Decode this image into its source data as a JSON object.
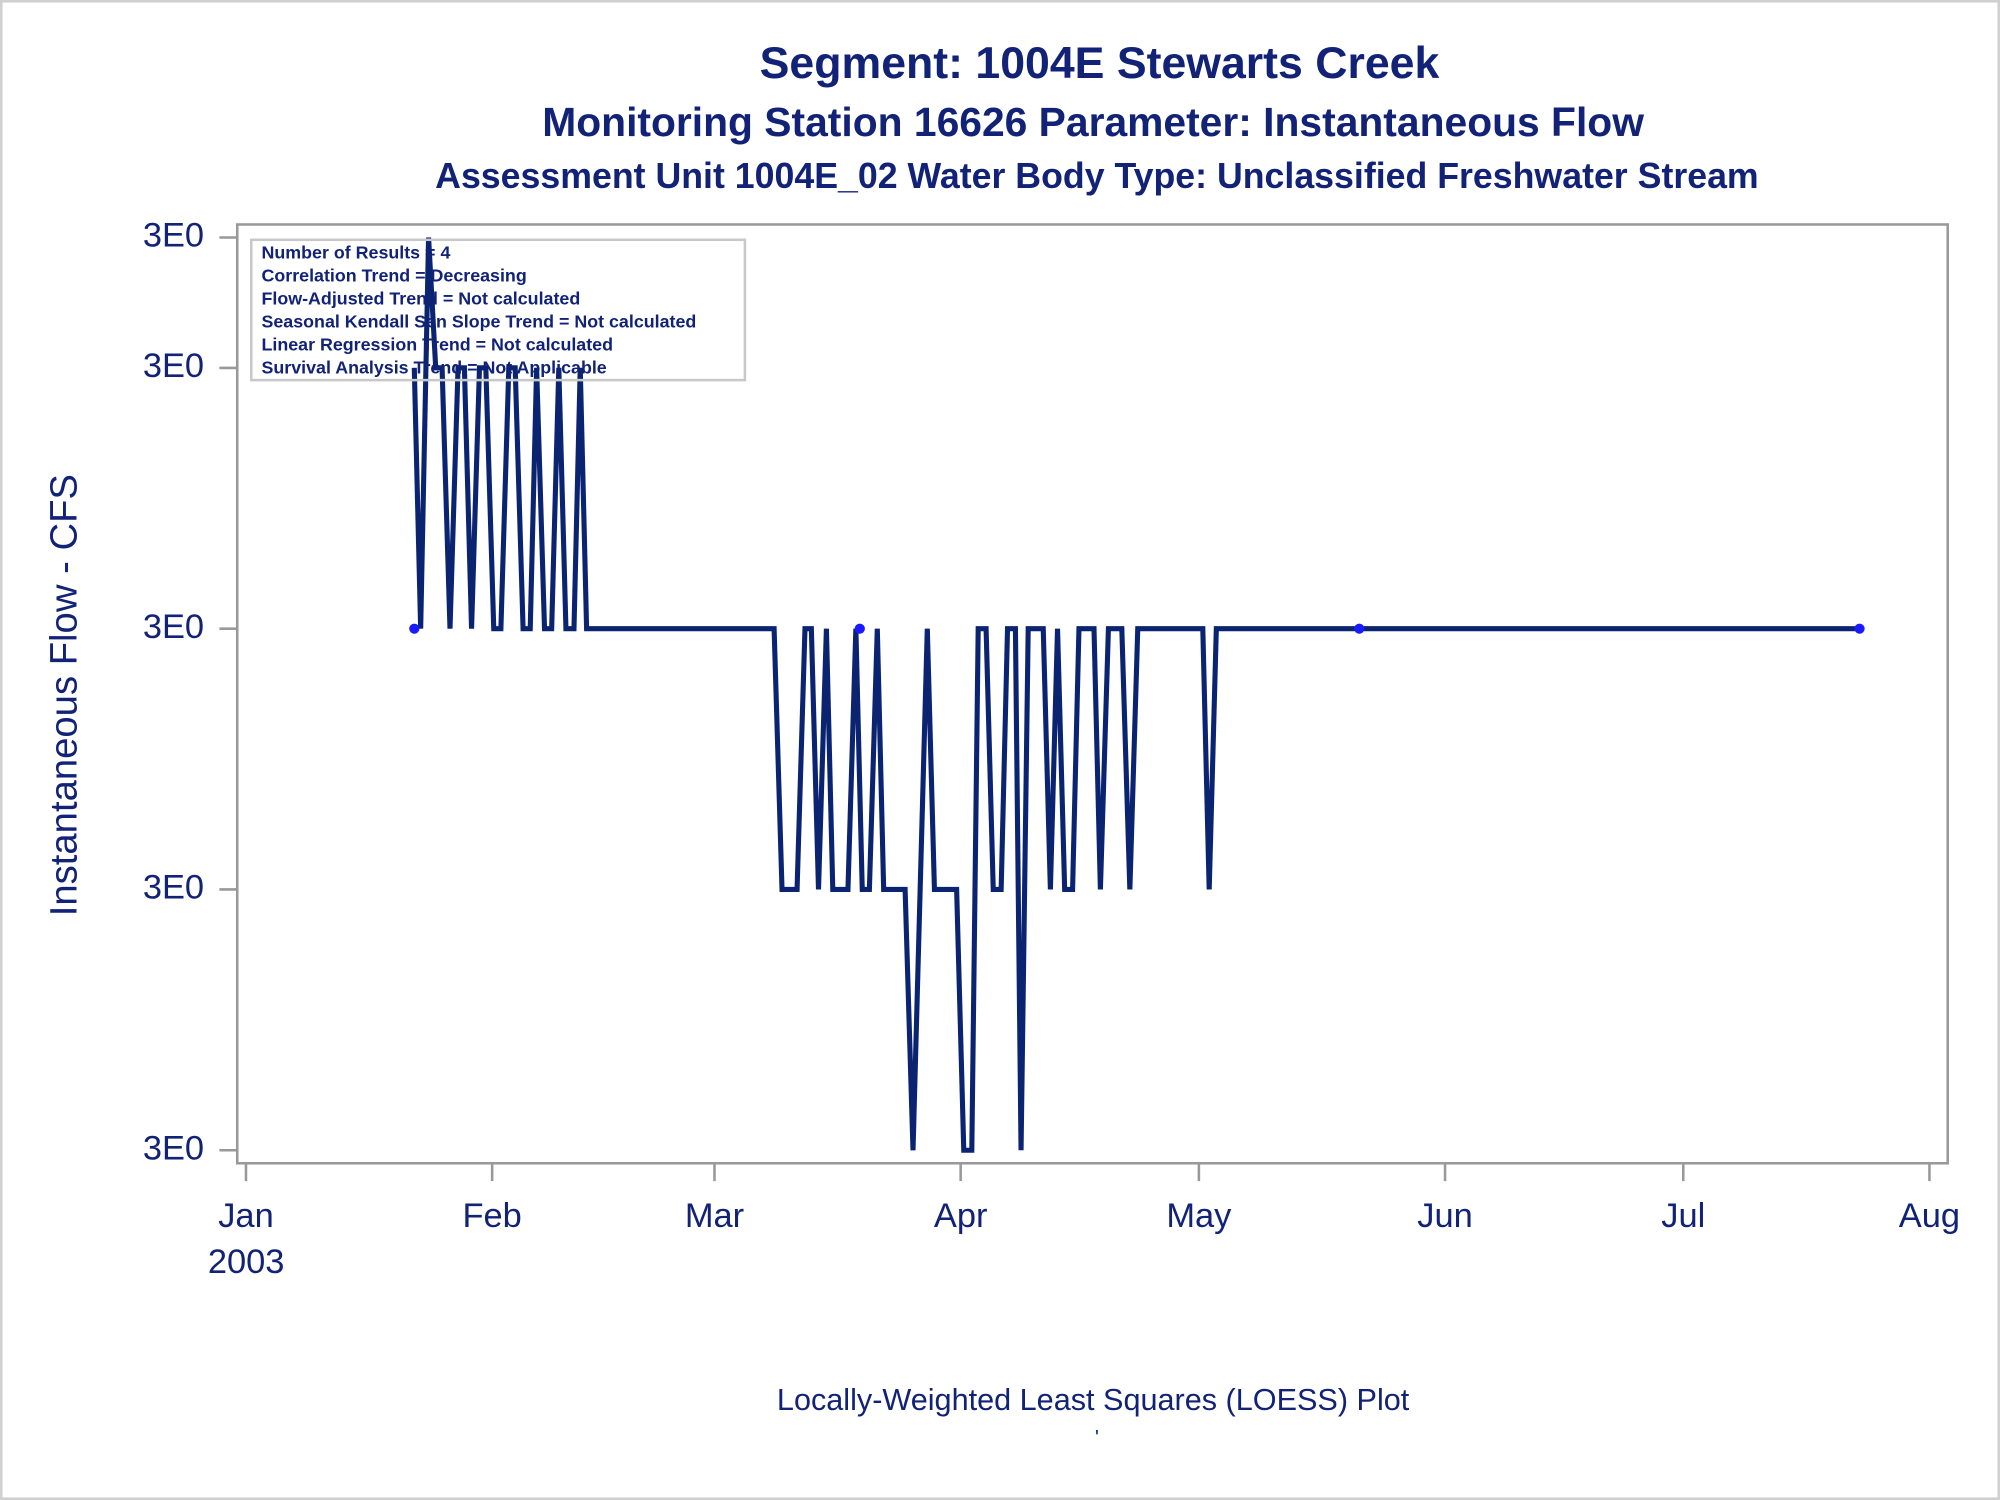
{
  "chart_data": {
    "type": "line",
    "title": "Segment: 1004E  Stewarts Creek",
    "subtitles": [
      "Monitoring Station 16626 Parameter: Instantaneous Flow",
      "Assessment Unit 1004E_02   Water Body Type: Unclassified Freshwater Stream"
    ],
    "y_label": "Instantaneous Flow - CFS",
    "x_year": "2003",
    "footnotes": [
      "Locally-Weighted Least Squares (LOESS) Plot",
      "'"
    ],
    "stats": [
      "Number of Results = 4",
      "Correlation Trend = Decreasing",
      "Flow-Adjusted Trend = Not calculated",
      "Seasonal Kendall Sen Slope Trend = Not calculated",
      "Linear Regression Trend = Not calculated",
      "Survival Analysis Trend = Not Applicable"
    ],
    "xlim": [
      -1.1,
      214.3
    ],
    "xticks": [
      {
        "value": 0,
        "label": "Jan"
      },
      {
        "value": 31,
        "label": "Feb"
      },
      {
        "value": 59,
        "label": "Mar"
      },
      {
        "value": 90,
        "label": "Apr"
      },
      {
        "value": 120,
        "label": "May"
      },
      {
        "value": 151,
        "label": "Jun"
      },
      {
        "value": 181,
        "label": "Jul"
      },
      {
        "value": 212,
        "label": "Aug"
      }
    ],
    "ylim": [
      2.59,
      3.31
    ],
    "yticks": [
      {
        "value": 2.6,
        "label": "3E0"
      },
      {
        "value": 2.8,
        "label": "3E0"
      },
      {
        "value": 3.0,
        "label": "3E0"
      },
      {
        "value": 3.2,
        "label": "3E0"
      },
      {
        "value": 3.3,
        "label": "3E0"
      }
    ],
    "series": [
      {
        "type": "line",
        "color": "#0a2472",
        "x": [
          21.2,
          22.0,
          23.0,
          23.9,
          24.7,
          25.7,
          26.7,
          27.5,
          28.4,
          29.4,
          30.2,
          31.2,
          32.1,
          33.1,
          33.9,
          34.9,
          35.8,
          36.6,
          37.6,
          38.5,
          39.4,
          40.3,
          41.3,
          42.1,
          42.9,
          66.5,
          67.5,
          69.4,
          70.4,
          71.2,
          72.1,
          73.1,
          73.9,
          75.8,
          76.8,
          77.6,
          78.5,
          79.5,
          80.3,
          83.0,
          84.0,
          85.8,
          86.7,
          89.5,
          90.4,
          91.4,
          92.2,
          93.2,
          94.1,
          95.1,
          95.9,
          96.9,
          97.6,
          98.5,
          100.4,
          101.3,
          102.2,
          103.1,
          104.1,
          104.9,
          106.8,
          107.6,
          108.6,
          110.3,
          111.3,
          112.3,
          120.5,
          121.3,
          122.2,
          203.2
        ],
        "values": [
          3.2,
          3.0,
          3.3,
          3.2,
          3.2,
          3.0,
          3.2,
          3.2,
          3.0,
          3.2,
          3.2,
          3.0,
          3.0,
          3.2,
          3.2,
          3.0,
          3.0,
          3.2,
          3.0,
          3.0,
          3.2,
          3.0,
          3.0,
          3.2,
          3.0,
          3.0,
          2.8,
          2.8,
          3.0,
          3.0,
          2.8,
          3.0,
          2.8,
          2.8,
          3.0,
          2.8,
          2.8,
          3.0,
          2.8,
          2.8,
          2.6,
          3.0,
          2.8,
          2.8,
          2.6,
          2.6,
          3.0,
          3.0,
          2.8,
          2.8,
          3.0,
          3.0,
          2.6,
          3.0,
          3.0,
          2.8,
          3.0,
          2.8,
          2.8,
          3.0,
          3.0,
          2.8,
          3.0,
          3.0,
          2.8,
          3.0,
          3.0,
          2.8,
          3.0,
          3.0
        ]
      },
      {
        "type": "scatter",
        "color": "#1a1aff",
        "x": [
          21.2,
          77.3,
          140.2,
          203.2
        ],
        "values": [
          3.0,
          3.0,
          3.0,
          3.0
        ]
      }
    ]
  }
}
